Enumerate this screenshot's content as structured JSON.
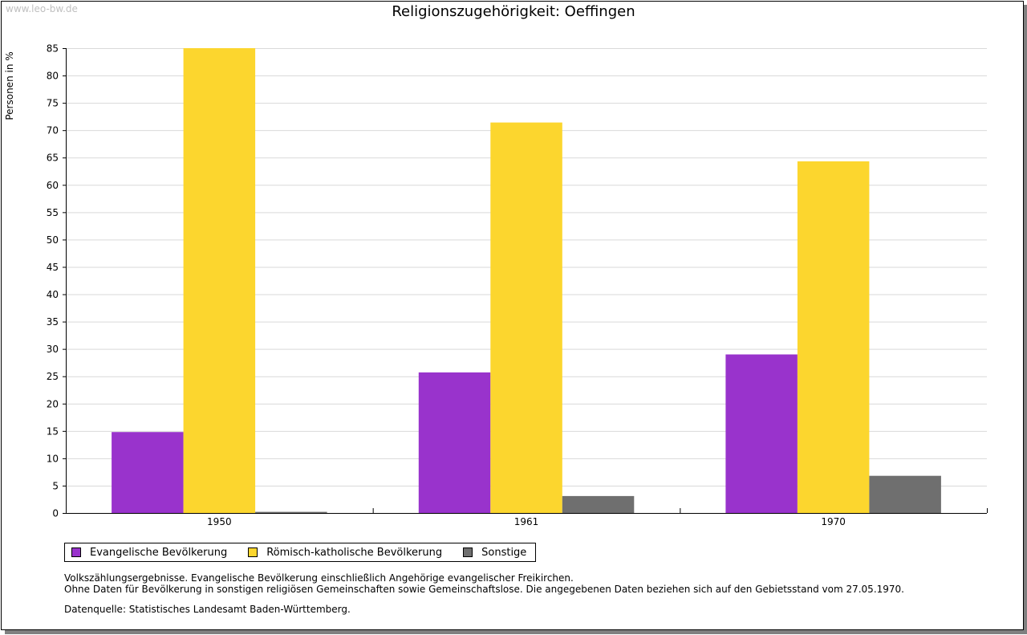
{
  "watermark": "www.leo-bw.de",
  "colors": {
    "evangelisch": "#9933cc",
    "katholisch": "#fcd62e",
    "sonstige": "#6f6f6f",
    "grid": "#d9d9d9",
    "axis": "#000000"
  },
  "chart_data": {
    "type": "bar",
    "title": "Religionszugehörigkeit: Oeffingen",
    "xlabel": "",
    "ylabel": "Personen in %",
    "ylim": [
      0,
      85
    ],
    "ytick_step": 5,
    "grid": true,
    "legend_position": "bottom-left",
    "categories": [
      "1950",
      "1961",
      "1970"
    ],
    "series": [
      {
        "name": "Evangelische Bevölkerung",
        "color": "#9933cc",
        "values": [
          14.8,
          25.7,
          29.0
        ]
      },
      {
        "name": "Römisch-katholische Bevölkerung",
        "color": "#fcd62e",
        "values": [
          85.0,
          71.4,
          64.3
        ]
      },
      {
        "name": "Sonstige",
        "color": "#6f6f6f",
        "values": [
          0.2,
          3.1,
          6.8
        ]
      }
    ]
  },
  "notes": {
    "line1": "Volkszählungsergebnisse. Evangelische Bevölkerung einschließlich Angehörige evangelischer Freikirchen.",
    "line2": "Ohne Daten für Bevölkerung in sonstigen religiösen Gemeinschaften sowie Gemeinschaftslose. Die angegebenen Daten beziehen sich auf den Gebietsstand vom 27.05.1970.",
    "source": "Datenquelle: Statistisches Landesamt Baden-Württemberg."
  }
}
